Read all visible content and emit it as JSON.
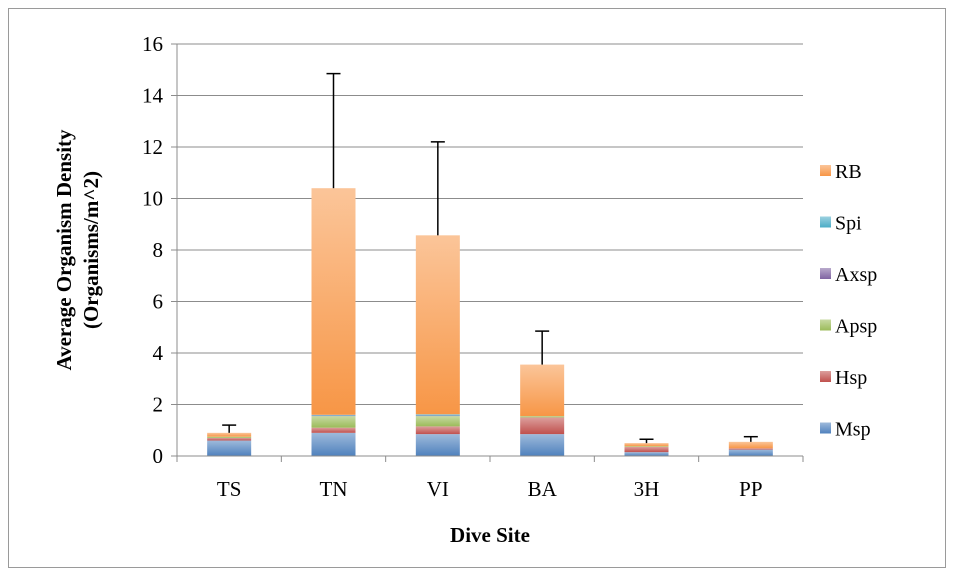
{
  "chart_data": {
    "type": "bar",
    "stacked": true,
    "title": "",
    "xlabel": "Dive Site",
    "ylabel_line1": "Average Organism Density",
    "ylabel_line2": "(Organisms/m^2)",
    "ylim": [
      0,
      16
    ],
    "yticks": [
      0,
      2,
      4,
      6,
      8,
      10,
      12,
      14,
      16
    ],
    "grid": true,
    "legend_position": "right",
    "categories": [
      "TS",
      "TN",
      "VI",
      "BA",
      "3H",
      "PP"
    ],
    "series": [
      {
        "name": "Msp",
        "color": "#4f81bd",
        "values": [
          0.6,
          0.9,
          0.85,
          0.85,
          0.15,
          0.25
        ]
      },
      {
        "name": "Hsp",
        "color": "#c0504d",
        "values": [
          0.1,
          0.2,
          0.3,
          0.65,
          0.2,
          0.05
        ]
      },
      {
        "name": "Apsp",
        "color": "#9bbb59",
        "values": [
          0.05,
          0.45,
          0.4,
          0.05,
          0.03,
          0.0
        ]
      },
      {
        "name": "Axsp",
        "color": "#8064a2",
        "values": [
          0.0,
          0.02,
          0.02,
          0.0,
          0.0,
          0.0
        ]
      },
      {
        "name": "Spi",
        "color": "#4bacc6",
        "values": [
          0.0,
          0.03,
          0.05,
          0.0,
          0.0,
          0.0
        ]
      },
      {
        "name": "RB",
        "color": "#f79646",
        "values": [
          0.15,
          8.8,
          6.95,
          2.0,
          0.12,
          0.25
        ]
      }
    ],
    "error_bars_upper": [
      1.2,
      14.85,
      12.2,
      4.85,
      0.65,
      0.75
    ]
  }
}
